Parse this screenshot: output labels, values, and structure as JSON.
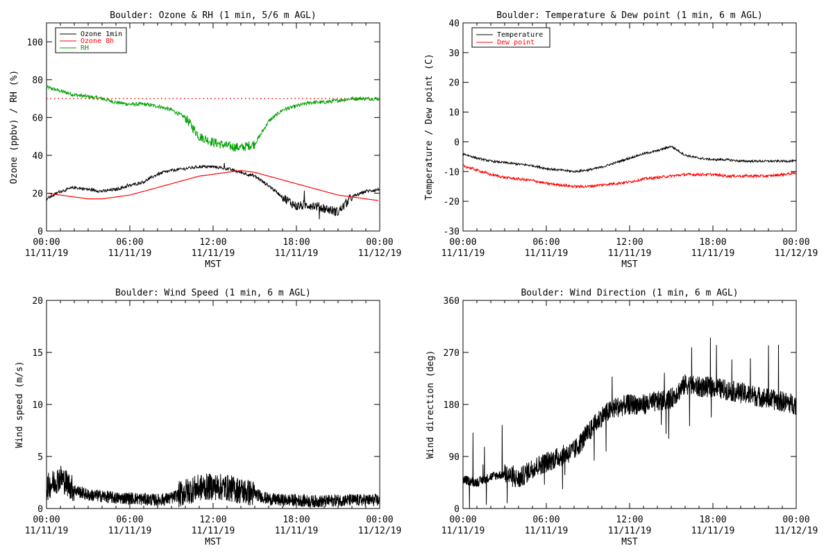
{
  "charts": {
    "ozone_rh": {
      "title": "Boulder: Ozone & RH (1 min, 5/6 m AGL)",
      "ylabel": "Ozone (ppbv) / RH (%)",
      "xlabel": "",
      "y_ticks": [
        "0",
        "20",
        "40",
        "60",
        "80",
        "100"
      ],
      "legend": [
        "Ozone 1min",
        "Ozone 8h",
        "RH"
      ]
    },
    "temp_dew": {
      "title": "Boulder: Temperature & Dew point (1 min, 6 m AGL)",
      "ylabel": "Temperature / Dew point (C)",
      "xlabel": "",
      "y_ticks": [
        "-30",
        "-20",
        "-10",
        "0",
        "10",
        "20",
        "30",
        "40"
      ],
      "legend": [
        "Temperature",
        "Dew point"
      ]
    },
    "wind_speed": {
      "title": "Boulder: Wind Speed (1 min, 6 m AGL)",
      "ylabel": "Wind speed (m/s)",
      "xlabel": "",
      "y_ticks": [
        "0",
        "5",
        "10",
        "15",
        "20"
      ]
    },
    "wind_dir": {
      "title": "Boulder: Wind Direction (1 min, 6 m AGL)",
      "ylabel": "Wind direction (deg)",
      "xlabel": "",
      "y_ticks": [
        "0",
        "90",
        "180",
        "270",
        "360"
      ]
    },
    "x_ticks_time": [
      "00:00",
      "06:00",
      "12:00",
      "18:00",
      "00:00"
    ],
    "x_ticks_date": [
      "11/11/19",
      "11/11/19",
      "11/11/19",
      "11/11/19",
      "11/12/19"
    ],
    "x_axis_label": "MST"
  },
  "chart_data": [
    {
      "type": "line",
      "title": "Boulder: Ozone & RH (1 min, 5/6 m AGL)",
      "ylabel": "Ozone (ppbv) / RH (%)",
      "xlabel": "MST",
      "x_range": [
        "11/11/19 00:00",
        "11/12/19 00:00"
      ],
      "ylim": [
        0,
        110
      ],
      "colors": {
        "Ozone 1min": "#000000",
        "Ozone 8h": "#ff0000",
        "RH": "#00a000",
        "reference": "#ff0000"
      },
      "reference_line": 70,
      "x_hours": [
        0,
        1,
        2,
        3,
        4,
        5,
        6,
        7,
        8,
        9,
        10,
        11,
        12,
        13,
        14,
        15,
        16,
        17,
        18,
        19,
        20,
        21,
        22,
        23,
        24
      ],
      "series": [
        {
          "name": "Ozone 1min",
          "values": [
            17,
            21,
            23,
            22,
            21,
            22,
            24,
            26,
            30,
            32,
            33,
            34,
            34,
            33,
            31,
            29,
            24,
            18,
            13,
            14,
            12,
            10,
            18,
            21,
            22
          ]
        },
        {
          "name": "Ozone 8h",
          "values": [
            20,
            19,
            18,
            17,
            17,
            18,
            19,
            21,
            23,
            25,
            27,
            29,
            30,
            31,
            32,
            31,
            29,
            27,
            25,
            23,
            21,
            19,
            18,
            17,
            16
          ]
        },
        {
          "name": "RH",
          "values": [
            76,
            74,
            72,
            71,
            70,
            68,
            67,
            67,
            66,
            64,
            60,
            50,
            47,
            45,
            44,
            46,
            58,
            64,
            66,
            68,
            68,
            69,
            70,
            70,
            70
          ]
        }
      ]
    },
    {
      "type": "line",
      "title": "Boulder: Temperature & Dew point (1 min, 6 m AGL)",
      "ylabel": "Temperature / Dew point (C)",
      "xlabel": "MST",
      "x_range": [
        "11/11/19 00:00",
        "11/12/19 00:00"
      ],
      "ylim": [
        -30,
        40
      ],
      "colors": {
        "Temperature": "#000000",
        "Dew point": "#ff0000"
      },
      "x_hours": [
        0,
        1,
        2,
        3,
        4,
        5,
        6,
        7,
        8,
        9,
        10,
        11,
        12,
        13,
        14,
        15,
        16,
        17,
        18,
        19,
        20,
        21,
        22,
        23,
        24
      ],
      "series": [
        {
          "name": "Temperature",
          "values": [
            -4,
            -5.5,
            -6.5,
            -7,
            -7.5,
            -8,
            -9,
            -9.5,
            -10,
            -9.5,
            -8.5,
            -7,
            -5.5,
            -4,
            -3,
            -1.5,
            -4.5,
            -5.5,
            -6,
            -6,
            -6.5,
            -6.5,
            -6.5,
            -6.5,
            -6.5
          ]
        },
        {
          "name": "Dew point",
          "values": [
            -8,
            -9.5,
            -11,
            -12,
            -12.5,
            -13,
            -14,
            -14.5,
            -15,
            -15,
            -14.5,
            -14,
            -13.5,
            -12.5,
            -12,
            -11.5,
            -11,
            -11,
            -11,
            -11.5,
            -11.5,
            -11.5,
            -11.5,
            -11,
            -10.5
          ]
        }
      ]
    },
    {
      "type": "line",
      "title": "Boulder: Wind Speed (1 min, 6 m AGL)",
      "ylabel": "Wind speed (m/s)",
      "xlabel": "MST",
      "x_range": [
        "11/11/19 00:00",
        "11/12/19 00:00"
      ],
      "ylim": [
        0,
        20
      ],
      "colors": {
        "Wind speed": "#000000"
      },
      "x_hours": [
        0,
        1,
        2,
        3,
        4,
        5,
        6,
        7,
        8,
        9,
        10,
        11,
        12,
        13,
        14,
        15,
        16,
        17,
        18,
        19,
        20,
        21,
        22,
        23,
        24
      ],
      "series": [
        {
          "values": [
            2.0,
            3.0,
            1.8,
            1.3,
            1.2,
            1.0,
            1.0,
            0.9,
            0.8,
            1.0,
            1.6,
            2.0,
            2.1,
            2.0,
            1.7,
            1.4,
            0.9,
            0.8,
            0.8,
            0.7,
            0.7,
            0.8,
            0.8,
            0.8,
            0.8
          ]
        }
      ]
    },
    {
      "type": "line",
      "title": "Boulder: Wind Direction (1 min, 6 m AGL)",
      "ylabel": "Wind direction (deg)",
      "xlabel": "MST",
      "x_range": [
        "11/11/19 00:00",
        "11/12/19 00:00"
      ],
      "ylim": [
        0,
        360
      ],
      "colors": {
        "Wind direction": "#000000"
      },
      "x_hours": [
        0,
        1,
        2,
        3,
        4,
        5,
        6,
        7,
        8,
        9,
        10,
        11,
        12,
        13,
        14,
        15,
        16,
        17,
        18,
        19,
        20,
        21,
        22,
        23,
        24
      ],
      "series": [
        {
          "values": [
            50,
            45,
            55,
            60,
            50,
            70,
            80,
            90,
            100,
            130,
            160,
            175,
            180,
            180,
            185,
            190,
            215,
            210,
            210,
            205,
            200,
            195,
            190,
            185,
            180
          ]
        }
      ]
    }
  ]
}
